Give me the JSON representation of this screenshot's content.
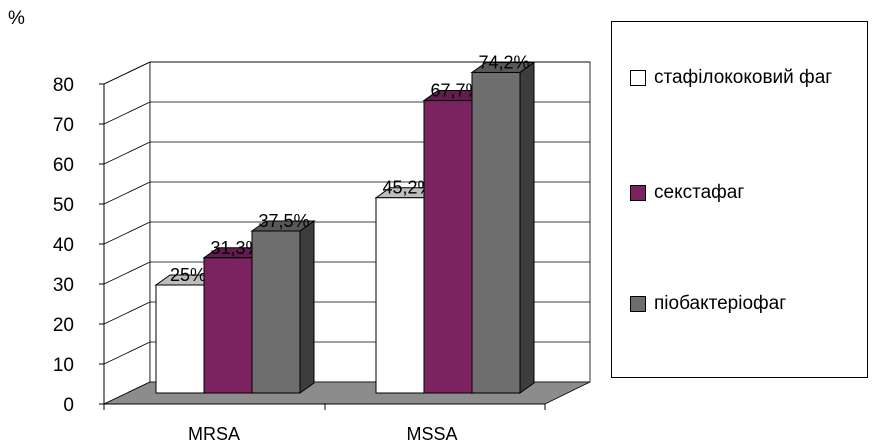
{
  "chart_data": {
    "type": "bar",
    "ylabel": "%",
    "ylim": [
      0,
      80
    ],
    "yticks": [
      0,
      10,
      20,
      30,
      40,
      50,
      60,
      70,
      80
    ],
    "categories": [
      "MRSA",
      "MSSA"
    ],
    "series": [
      {
        "name": "стафілококовий фаг",
        "values": [
          25,
          45.2
        ],
        "labels": [
          "25%",
          "45,2%"
        ],
        "color": "#ffffff"
      },
      {
        "name": "секстафаг",
        "values": [
          31.3,
          67.7
        ],
        "labels": [
          "31,3%",
          "67,7%"
        ],
        "color": "#7b2360"
      },
      {
        "name": "піобактеріофаг",
        "values": [
          37.5,
          74.2
        ],
        "labels": [
          "37,5%",
          "74,2%"
        ],
        "color": "#6e6e6e"
      }
    ],
    "grid": true,
    "legend_position": "right",
    "style": "3d-clustered-bar"
  }
}
